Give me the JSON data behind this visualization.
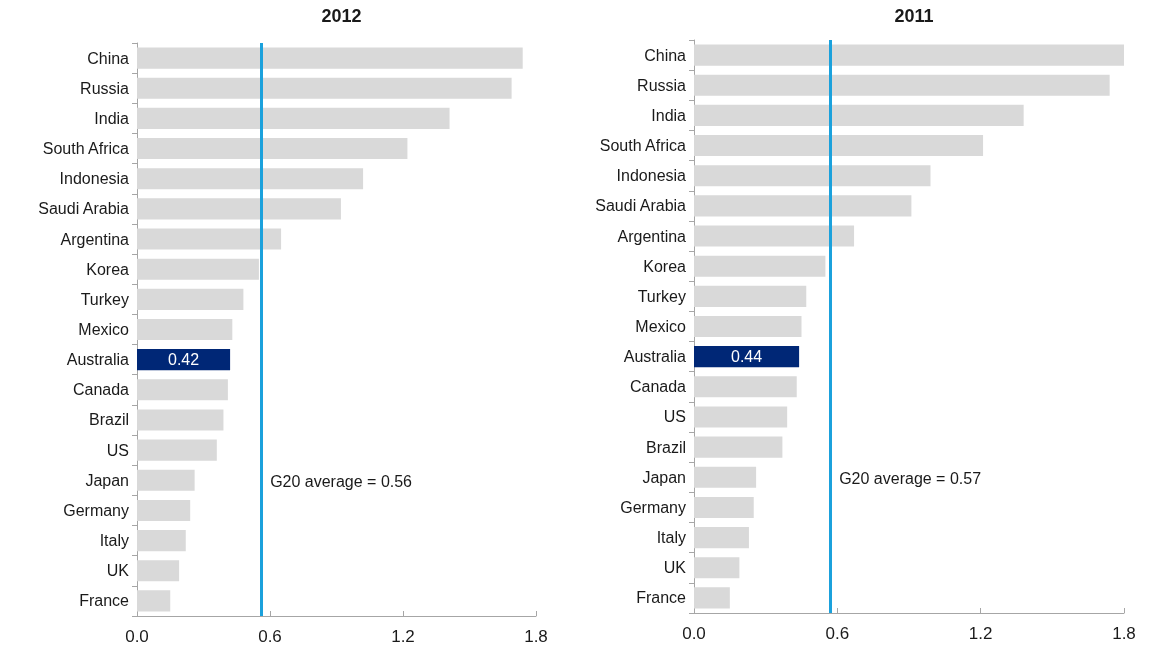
{
  "chart_data": [
    {
      "type": "bar",
      "orientation": "horizontal",
      "title": "2012",
      "categories": [
        "China",
        "Russia",
        "India",
        "South Africa",
        "Indonesia",
        "Saudi Arabia",
        "Argentina",
        "Korea",
        "Turkey",
        "Mexico",
        "Australia",
        "Canada",
        "Brazil",
        "US",
        "Japan",
        "Germany",
        "Italy",
        "UK",
        "France"
      ],
      "values": [
        1.74,
        1.69,
        1.41,
        1.22,
        1.02,
        0.92,
        0.65,
        0.55,
        0.48,
        0.43,
        0.42,
        0.41,
        0.39,
        0.36,
        0.26,
        0.24,
        0.22,
        0.19,
        0.15
      ],
      "colors": [
        "#d9d9d9",
        "#d9d9d9",
        "#d9d9d9",
        "#d9d9d9",
        "#d9d9d9",
        "#d9d9d9",
        "#d9d9d9",
        "#d9d9d9",
        "#d9d9d9",
        "#d9d9d9",
        "#002776",
        "#d9d9d9",
        "#d9d9d9",
        "#d9d9d9",
        "#d9d9d9",
        "#d9d9d9",
        "#d9d9d9",
        "#d9d9d9",
        "#d9d9d9"
      ],
      "value_labels": [
        null,
        null,
        null,
        null,
        null,
        null,
        null,
        null,
        null,
        null,
        "0.42",
        null,
        null,
        null,
        null,
        null,
        null,
        null,
        null
      ],
      "xlim": [
        0,
        1.8
      ],
      "xticks": [
        {
          "value": 0,
          "label": "0.0"
        },
        0.6,
        1.2,
        1.8
      ],
      "ref_lines": [
        {
          "axis": "x",
          "value": 0.56,
          "label": "G20 average = 0.56",
          "color": "#1ba1dc"
        }
      ],
      "grid": false
    },
    {
      "type": "bar",
      "orientation": "horizontal",
      "title": "2011",
      "categories": [
        "China",
        "Russia",
        "India",
        "South Africa",
        "Indonesia",
        "Saudi Arabia",
        "Argentina",
        "Korea",
        "Turkey",
        "Mexico",
        "Australia",
        "Canada",
        "US",
        "Brazil",
        "Japan",
        "Germany",
        "Italy",
        "UK",
        "France"
      ],
      "values": [
        1.8,
        1.74,
        1.38,
        1.21,
        0.99,
        0.91,
        0.67,
        0.55,
        0.47,
        0.45,
        0.44,
        0.43,
        0.39,
        0.37,
        0.26,
        0.25,
        0.23,
        0.19,
        0.15
      ],
      "colors": [
        "#d9d9d9",
        "#d9d9d9",
        "#d9d9d9",
        "#d9d9d9",
        "#d9d9d9",
        "#d9d9d9",
        "#d9d9d9",
        "#d9d9d9",
        "#d9d9d9",
        "#d9d9d9",
        "#002776",
        "#d9d9d9",
        "#d9d9d9",
        "#d9d9d9",
        "#d9d9d9",
        "#d9d9d9",
        "#d9d9d9",
        "#d9d9d9",
        "#d9d9d9"
      ],
      "value_labels": [
        null,
        null,
        null,
        null,
        null,
        null,
        null,
        null,
        null,
        null,
        "0.44",
        null,
        null,
        null,
        null,
        null,
        null,
        null,
        null
      ],
      "xlim": [
        0,
        1.8
      ],
      "xticks": [
        {
          "value": 0,
          "label": "0.0"
        },
        0.6,
        1.2,
        1.8
      ],
      "ref_lines": [
        {
          "axis": "x",
          "value": 0.57,
          "label": "G20 average = 0.57",
          "color": "#1ba1dc"
        }
      ],
      "grid": false
    }
  ]
}
